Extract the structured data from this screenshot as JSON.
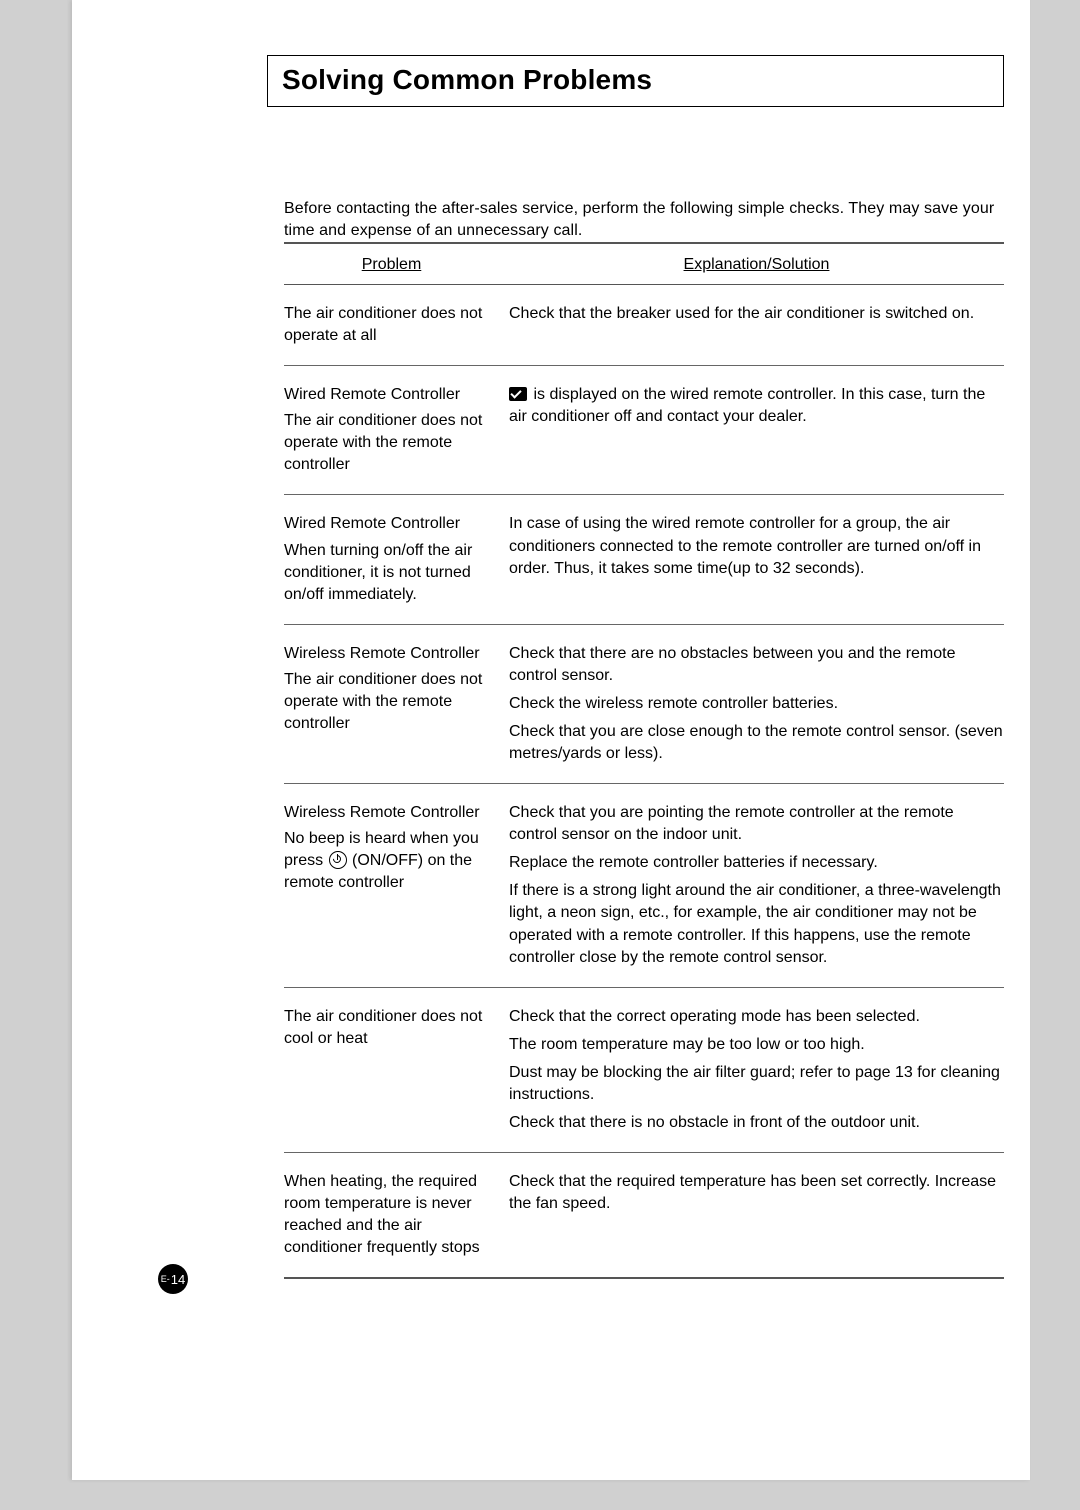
{
  "title": "Solving Common Problems",
  "intro": "Before contacting the after-sales service, perform the following simple checks. They may save your time and expense of an unnecessary call.",
  "headers": {
    "problem": "Problem",
    "solution": "Explanation/Solution"
  },
  "rows": [
    {
      "problem_title": "",
      "problem_body": "The air conditioner does not operate at all",
      "solutions": [
        "Check that the breaker used for the air conditioner is switched on."
      ],
      "has_err_icon": false,
      "has_power_icon": false
    },
    {
      "problem_title": "Wired Remote Controller",
      "problem_body": "The air conditioner does not operate with the remote controller",
      "solutions": [
        " is displayed on the wired remote controller. In this case, turn the air conditioner off and contact your dealer."
      ],
      "has_err_icon": true,
      "has_power_icon": false
    },
    {
      "problem_title": "Wired Remote Controller",
      "problem_body": "When turning on/off the air conditioner, it is not turned on/off immediately.",
      "solutions": [
        "In case of using the wired remote controller for a group, the air conditioners connected to the remote controller are turned on/off in order. Thus, it takes some time(up to 32 seconds)."
      ],
      "has_err_icon": false,
      "has_power_icon": false
    },
    {
      "problem_title": "Wireless Remote Controller",
      "problem_body": "The air conditioner does not operate with the remote controller",
      "solutions": [
        "Check that there are no obstacles between you and the remote control sensor.",
        "Check the wireless remote controller batteries.",
        "Check that you are close enough to the remote control sensor. (seven metres/yards or less)."
      ],
      "has_err_icon": false,
      "has_power_icon": false
    },
    {
      "problem_title": "Wireless Remote Controller",
      "problem_body_pre": "No beep is heard when you press ",
      "problem_body_post": " (ON/OFF) on the remote controller",
      "solutions": [
        "Check that you are pointing the remote controller at the remote control sensor on the indoor unit.",
        "Replace the remote controller batteries if necessary.",
        "If there is a strong light around the air conditioner, a three-wavelength light, a neon sign, etc., for example, the air conditioner may not be operated with a remote controller. If this happens, use the remote controller close by the remote control sensor."
      ],
      "has_err_icon": false,
      "has_power_icon": true
    },
    {
      "problem_title": "",
      "problem_body": "The air conditioner does not cool or heat",
      "solutions": [
        "Check that the correct operating mode has been selected.",
        "The room temperature may be too low or too high.",
        "Dust may be blocking the air filter guard; refer to page 13 for cleaning instructions.",
        "Check that there is no obstacle in front of the outdoor unit."
      ],
      "has_err_icon": false,
      "has_power_icon": false
    },
    {
      "problem_title": "",
      "problem_body": "When heating, the required room temperature is never reached and the air conditioner frequently stops",
      "solutions": [
        "Check that the required temperature has been set correctly. Increase the fan speed."
      ],
      "has_err_icon": false,
      "has_power_icon": false
    }
  ],
  "page_number": {
    "prefix": "E-",
    "num": "14"
  },
  "colors": {
    "page_bg": "#d0d0d0",
    "paper_bg": "#ffffff",
    "text": "#000000",
    "rule": "#555555"
  }
}
